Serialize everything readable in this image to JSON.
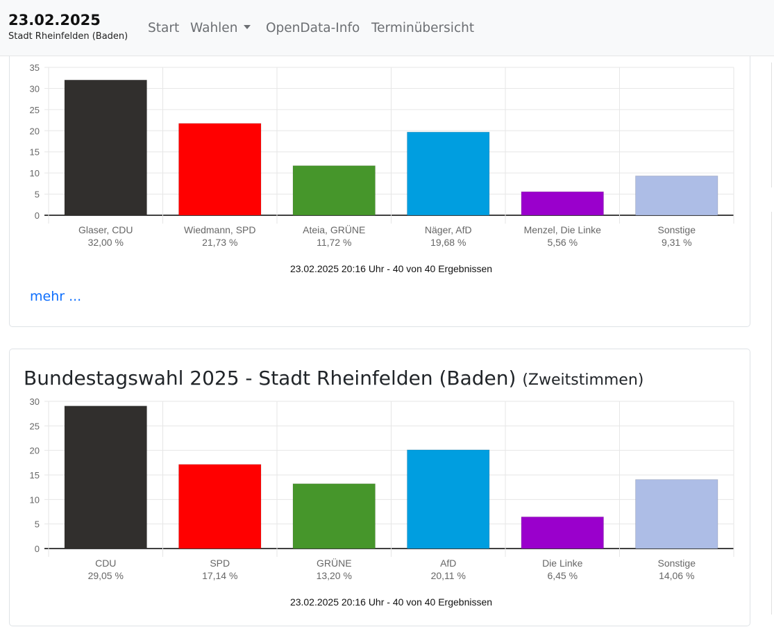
{
  "header": {
    "date": "23.02.2025",
    "city": "Stadt Rheinfelden (Baden)",
    "nav": {
      "start": "Start",
      "wahlen": "Wahlen",
      "opendata": "OpenData-Info",
      "termine": "Terminübersicht"
    }
  },
  "card1": {
    "more_link": "mehr ..."
  },
  "card2": {
    "title": "Bundestagswahl 2025 - Stadt Rheinfelden (Baden)",
    "subtitle": "(Zweitstimmen)"
  },
  "chart_data": [
    {
      "type": "bar",
      "categories": [
        "Glaser, CDU",
        "Wiedmann, SPD",
        "Ateia, GRÜNE",
        "Näger, AfD",
        "Menzel, Die Linke",
        "Sonstige"
      ],
      "values": [
        32.0,
        21.73,
        11.72,
        19.68,
        5.56,
        9.31
      ],
      "value_labels": [
        "32,00 %",
        "21,73 %",
        "11,72 %",
        "19,68 %",
        "5,56 %",
        "9,31 %"
      ],
      "colors": [
        "#312f2d",
        "#ff0000",
        "#46962b",
        "#009ee0",
        "#9a00cc",
        "#adbde6"
      ],
      "y_ticks": [
        "0",
        "5",
        "10",
        "15",
        "20",
        "25",
        "30",
        "35"
      ],
      "ylim": [
        0,
        35
      ],
      "grid": true,
      "caption": "23.02.2025 20:16 Uhr - 40 von 40 Ergebnissen"
    },
    {
      "type": "bar",
      "categories": [
        "CDU",
        "SPD",
        "GRÜNE",
        "AfD",
        "Die Linke",
        "Sonstige"
      ],
      "values": [
        29.05,
        17.14,
        13.2,
        20.11,
        6.45,
        14.06
      ],
      "value_labels": [
        "29,05 %",
        "17,14 %",
        "13,20 %",
        "20,11 %",
        "6,45 %",
        "14,06 %"
      ],
      "colors": [
        "#312f2d",
        "#ff0000",
        "#46962b",
        "#009ee0",
        "#9a00cc",
        "#adbde6"
      ],
      "y_ticks": [
        "0",
        "5",
        "10",
        "15",
        "20",
        "25",
        "30"
      ],
      "ylim": [
        0,
        30
      ],
      "grid": true,
      "caption": "23.02.2025 20:16 Uhr - 40 von 40 Ergebnissen"
    }
  ]
}
